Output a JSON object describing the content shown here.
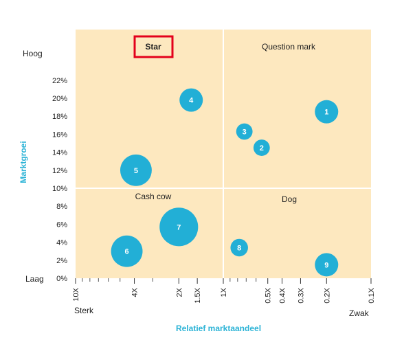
{
  "chart_data": {
    "type": "scatter",
    "title": "",
    "xlabel": "Relatief marktaandeel",
    "ylabel": "Marktgroei",
    "x_scale": "log",
    "x_reversed": true,
    "xlim": [
      10,
      0.1
    ],
    "ylim": [
      0,
      23
    ],
    "x_ticks": [
      {
        "value": 10,
        "label": "10X"
      },
      {
        "value": 4,
        "label": "4X"
      },
      {
        "value": 2,
        "label": "2X"
      },
      {
        "value": 1.5,
        "label": "1.5X"
      },
      {
        "value": 1,
        "label": "1X"
      },
      {
        "value": 0.5,
        "label": "0.5X"
      },
      {
        "value": 0.4,
        "label": "0.4X"
      },
      {
        "value": 0.3,
        "label": "0.3X"
      },
      {
        "value": 0.2,
        "label": "0.2X"
      },
      {
        "value": 0.1,
        "label": "0.1X"
      }
    ],
    "x_minor_ticks": [
      9,
      8,
      7,
      6,
      5,
      3,
      0.9,
      0.8,
      0.7,
      0.6
    ],
    "y_ticks": [
      {
        "value": 0,
        "label": "0%"
      },
      {
        "value": 2,
        "label": "2%"
      },
      {
        "value": 4,
        "label": "4%"
      },
      {
        "value": 6,
        "label": "6%"
      },
      {
        "value": 8,
        "label": "8%"
      },
      {
        "value": 10,
        "label": "10%"
      },
      {
        "value": 12,
        "label": "12%"
      },
      {
        "value": 14,
        "label": "14%"
      },
      {
        "value": 16,
        "label": "16%"
      },
      {
        "value": 18,
        "label": "18%"
      },
      {
        "value": 20,
        "label": "20%"
      },
      {
        "value": 22,
        "label": "22%"
      }
    ],
    "y_end_labels": {
      "high": "Hoog",
      "low": "Laag"
    },
    "x_end_labels": {
      "strong": "Sterk",
      "weak": "Zwak"
    },
    "quadrants": [
      {
        "name": "Star",
        "highlighted": true
      },
      {
        "name": "Question mark",
        "highlighted": false
      },
      {
        "name": "Cash cow",
        "highlighted": false
      },
      {
        "name": "Dog",
        "highlighted": false
      }
    ],
    "divider_x": 1,
    "divider_y": 10,
    "points": [
      {
        "label": "1",
        "x": 0.2,
        "y": 18.5,
        "size": 1.0
      },
      {
        "label": "2",
        "x": 0.55,
        "y": 14.5,
        "size": 0.7
      },
      {
        "label": "3",
        "x": 0.72,
        "y": 16.3,
        "size": 0.7
      },
      {
        "label": "4",
        "x": 1.65,
        "y": 19.8,
        "size": 1.0
      },
      {
        "label": "5",
        "x": 3.9,
        "y": 12.0,
        "size": 1.35
      },
      {
        "label": "6",
        "x": 4.5,
        "y": 3.0,
        "size": 1.35
      },
      {
        "label": "7",
        "x": 2.0,
        "y": 5.7,
        "size": 1.65
      },
      {
        "label": "8",
        "x": 0.78,
        "y": 3.4,
        "size": 0.75
      },
      {
        "label": "9",
        "x": 0.2,
        "y": 1.5,
        "size": 1.0
      }
    ],
    "colors": {
      "plot_background": "#fde8bf",
      "bubble": "#22afd6",
      "divider": "#ffffff",
      "highlight_box": "#e3001b",
      "axis_title": "#2bb3d6"
    }
  }
}
